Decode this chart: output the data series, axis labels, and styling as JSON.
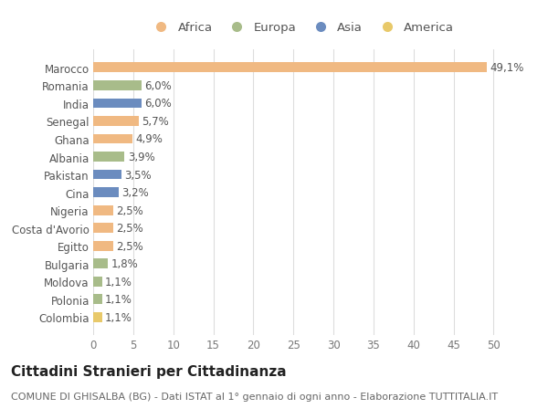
{
  "categories": [
    "Marocco",
    "Romania",
    "India",
    "Senegal",
    "Ghana",
    "Albania",
    "Pakistan",
    "Cina",
    "Nigeria",
    "Costa d'Avorio",
    "Egitto",
    "Bulgaria",
    "Moldova",
    "Polonia",
    "Colombia"
  ],
  "values": [
    49.1,
    6.0,
    6.0,
    5.7,
    4.9,
    3.9,
    3.5,
    3.2,
    2.5,
    2.5,
    2.5,
    1.8,
    1.1,
    1.1,
    1.1
  ],
  "labels": [
    "49,1%",
    "6,0%",
    "6,0%",
    "5,7%",
    "4,9%",
    "3,9%",
    "3,5%",
    "3,2%",
    "2,5%",
    "2,5%",
    "2,5%",
    "1,8%",
    "1,1%",
    "1,1%",
    "1,1%"
  ],
  "colors": [
    "#F0B982",
    "#A8BC8A",
    "#6B8CBF",
    "#F0B982",
    "#F0B982",
    "#A8BC8A",
    "#6B8CBF",
    "#6B8CBF",
    "#F0B982",
    "#F0B982",
    "#F0B982",
    "#A8BC8A",
    "#A8BC8A",
    "#A8BC8A",
    "#E8C96A"
  ],
  "legend_labels": [
    "Africa",
    "Europa",
    "Asia",
    "America"
  ],
  "legend_colors": [
    "#F0B982",
    "#A8BC8A",
    "#6B8CBF",
    "#E8C96A"
  ],
  "title": "Cittadini Stranieri per Cittadinanza",
  "subtitle": "COMUNE DI GHISALBA (BG) - Dati ISTAT al 1° gennaio di ogni anno - Elaborazione TUTTITALIA.IT",
  "xlim": [
    0,
    52
  ],
  "xticks": [
    0,
    5,
    10,
    15,
    20,
    25,
    30,
    35,
    40,
    45,
    50
  ],
  "background_color": "#ffffff",
  "grid_color": "#dddddd",
  "bar_height": 0.55,
  "label_fontsize": 8.5,
  "tick_fontsize": 8.5,
  "legend_fontsize": 9.5,
  "title_fontsize": 11,
  "subtitle_fontsize": 8
}
